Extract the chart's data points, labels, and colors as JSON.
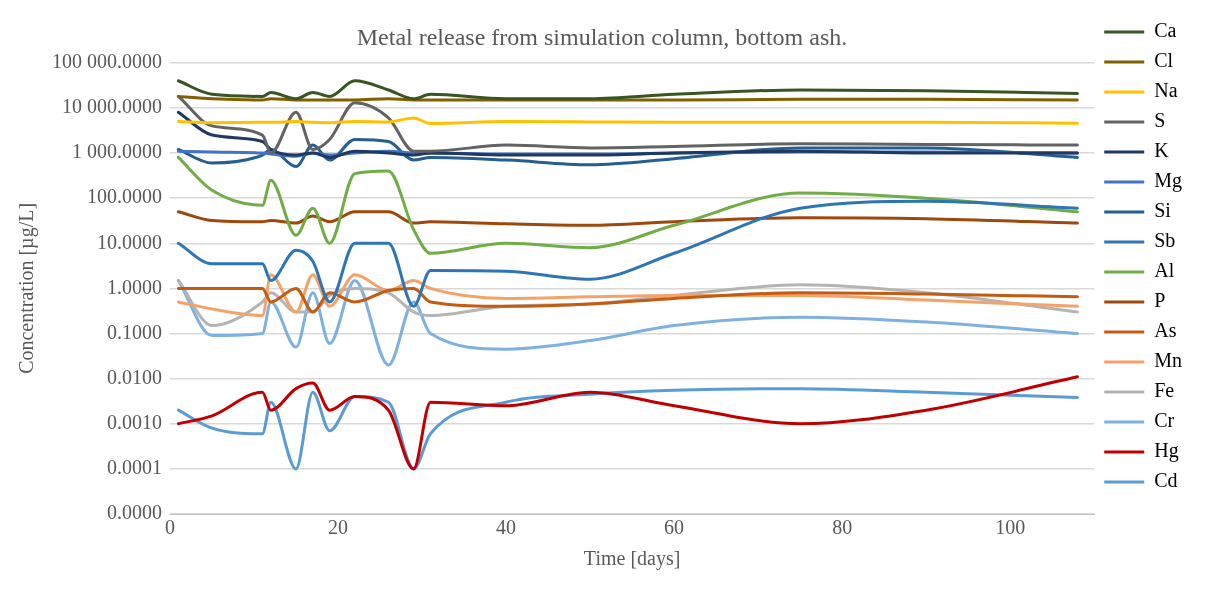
{
  "chart_data": {
    "type": "line",
    "title": "Metal release from simulation column, bottom ash.",
    "xlabel": "Time [days]",
    "ylabel": "Concentration [µg/L]",
    "x": [
      1,
      5,
      11,
      12,
      15,
      17,
      19,
      22,
      26,
      29,
      31,
      40,
      50,
      60,
      75,
      90,
      108
    ],
    "xlim": [
      0,
      110
    ],
    "xticks": [
      0,
      20,
      40,
      60,
      80,
      100
    ],
    "ylim": [
      1e-05,
      100000
    ],
    "yticks": [
      {
        "value": 1e-05,
        "label": "0.0000"
      },
      {
        "value": 0.0001,
        "label": "0.0001"
      },
      {
        "value": 0.001,
        "label": "0.0010"
      },
      {
        "value": 0.01,
        "label": "0.0100"
      },
      {
        "value": 0.1,
        "label": "0.1000"
      },
      {
        "value": 1,
        "label": "1.0000"
      },
      {
        "value": 10,
        "label": "10.0000"
      },
      {
        "value": 100,
        "label": "100.0000"
      },
      {
        "value": 1000,
        "label": "1 000.0000"
      },
      {
        "value": 10000,
        "label": "10 000.0000"
      },
      {
        "value": 100000,
        "label": "100 000.0000"
      }
    ],
    "log": "y",
    "grid": "y",
    "legend": "right",
    "series": [
      {
        "name": "Ca",
        "color": "#375623",
        "values": [
          40000,
          20000,
          18000,
          22000,
          16000,
          22000,
          18000,
          40000,
          25000,
          16000,
          20000,
          16000,
          16000,
          20000,
          25000,
          24000,
          21000
        ]
      },
      {
        "name": "Cl",
        "color": "#806000",
        "values": [
          18000,
          16000,
          15000,
          16000,
          15000,
          15000,
          15000,
          15000,
          16000,
          15000,
          15000,
          15000,
          15000,
          15000,
          15500,
          15500,
          15000
        ]
      },
      {
        "name": "Na",
        "color": "#ffc000",
        "values": [
          5000,
          4700,
          4800,
          4800,
          5000,
          4800,
          4700,
          5000,
          4900,
          6000,
          4500,
          5000,
          4900,
          4800,
          4800,
          4800,
          4600
        ]
      },
      {
        "name": "S",
        "color": "#636363",
        "values": [
          18000,
          4000,
          2500,
          1000,
          8000,
          1200,
          2000,
          13000,
          6000,
          1100,
          1100,
          1500,
          1300,
          1400,
          1600,
          1550,
          1500
        ]
      },
      {
        "name": "K",
        "color": "#203864",
        "values": [
          8000,
          2500,
          1800,
          1200,
          900,
          1000,
          800,
          1100,
          1000,
          900,
          1000,
          900,
          900,
          1000,
          1100,
          1000,
          1000
        ]
      },
      {
        "name": "Mg",
        "color": "#4472c4",
        "values": [
          1100,
          1050,
          1000,
          950,
          850,
          1000,
          900,
          1000,
          1100,
          1000,
          1000,
          950,
          950,
          1000,
          1050,
          1050,
          1000
        ]
      },
      {
        "name": "Si",
        "color": "#255e91",
        "values": [
          1200,
          600,
          900,
          1200,
          500,
          1500,
          700,
          2000,
          1800,
          700,
          800,
          700,
          550,
          750,
          1300,
          1300,
          800
        ]
      },
      {
        "name": "Sb",
        "color": "#2e75b6",
        "values": [
          10,
          3.5,
          3.5,
          1.5,
          7,
          4,
          0.5,
          10,
          10,
          0.4,
          2.5,
          2.4,
          1.6,
          6,
          60,
          85,
          60
        ]
      },
      {
        "name": "Al",
        "color": "#70ad47",
        "values": [
          800,
          150,
          70,
          250,
          15,
          60,
          10,
          350,
          400,
          20,
          6,
          10,
          8,
          25,
          130,
          100,
          50
        ]
      },
      {
        "name": "P",
        "color": "#9e480e",
        "values": [
          50,
          32,
          30,
          32,
          28,
          40,
          30,
          50,
          50,
          28,
          30,
          27,
          25,
          30,
          37,
          35,
          28
        ]
      },
      {
        "name": "As",
        "color": "#c55a11",
        "values": [
          1,
          1,
          1,
          0.5,
          1,
          0.3,
          0.8,
          0.5,
          0.9,
          1,
          0.5,
          0.4,
          0.45,
          0.6,
          0.8,
          0.75,
          0.65
        ]
      },
      {
        "name": "Mn",
        "color": "#f4a26a",
        "values": [
          0.5,
          0.35,
          0.25,
          2,
          0.3,
          2,
          0.4,
          2,
          0.9,
          1.5,
          1,
          0.6,
          0.65,
          0.7,
          0.7,
          0.55,
          0.4
        ]
      },
      {
        "name": "Fe",
        "color": "#b4b4b4",
        "values": [
          1.5,
          0.15,
          0.5,
          0.8,
          0.3,
          0.3,
          0.7,
          1,
          0.8,
          0.3,
          0.25,
          0.4,
          0.45,
          0.7,
          1.2,
          0.8,
          0.3
        ]
      },
      {
        "name": "Cr",
        "color": "#7fb1e0",
        "values": [
          1.5,
          0.09,
          0.1,
          0.5,
          0.05,
          0.8,
          0.06,
          1.5,
          0.02,
          0.5,
          0.1,
          0.045,
          0.07,
          0.15,
          0.23,
          0.18,
          0.1
        ]
      },
      {
        "name": "Hg",
        "color": "#c00000",
        "values": [
          0.001,
          0.0015,
          0.005,
          0.002,
          0.006,
          0.008,
          0.002,
          0.004,
          0.002,
          0.0001,
          0.003,
          0.0025,
          0.005,
          0.0025,
          0.001,
          0.002,
          0.011
        ]
      },
      {
        "name": "Cd",
        "color": "#5b9bd5",
        "values": [
          0.002,
          0.0008,
          0.0006,
          0.003,
          0.0001,
          0.005,
          0.0007,
          0.004,
          0.003,
          0.0001,
          0.0006,
          0.003,
          0.0045,
          0.0055,
          0.006,
          0.005,
          0.0038
        ]
      }
    ]
  }
}
